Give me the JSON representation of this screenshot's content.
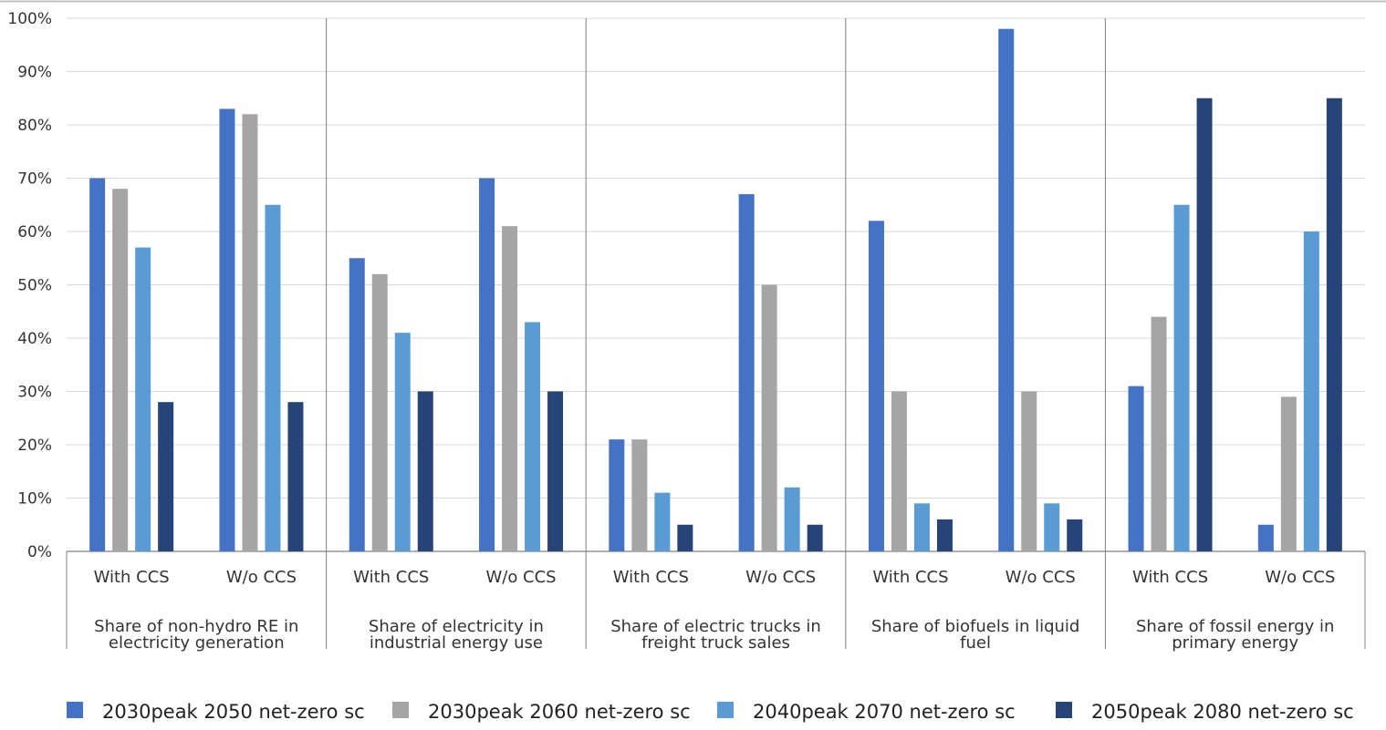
{
  "chart_data": {
    "type": "bar",
    "title": "",
    "xlabel": "",
    "ylabel": "",
    "ylim": [
      0,
      100
    ],
    "y_ticks": [
      0,
      10,
      20,
      30,
      40,
      50,
      60,
      70,
      80,
      90,
      100
    ],
    "y_tick_labels": [
      "0%",
      "10%",
      "20%",
      "30%",
      "40%",
      "50%",
      "60%",
      "70%",
      "80%",
      "90%",
      "100%"
    ],
    "grid": true,
    "legend_position": "bottom",
    "series": [
      {
        "name": "2030peak 2050 net-zero sc",
        "color": "#4472C4"
      },
      {
        "name": "2030peak 2060 net-zero sc",
        "color": "#A5A5A5"
      },
      {
        "name": "2040peak 2070 net-zero sc",
        "color": "#5B9BD5"
      },
      {
        "name": "2050peak 2080 net-zero sc",
        "color": "#264478"
      }
    ],
    "groups": [
      {
        "label_lines": [
          "Share of non-hydro RE in",
          "electricity generation"
        ],
        "categories": [
          {
            "label": "With CCS",
            "values": [
              70,
              68,
              57,
              28
            ]
          },
          {
            "label": "W/o CCS",
            "values": [
              83,
              82,
              65,
              28
            ]
          }
        ]
      },
      {
        "label_lines": [
          "Share of electricity in",
          "industrial energy use"
        ],
        "categories": [
          {
            "label": "With CCS",
            "values": [
              55,
              52,
              41,
              30
            ]
          },
          {
            "label": "W/o CCS",
            "values": [
              70,
              61,
              43,
              30
            ]
          }
        ]
      },
      {
        "label_lines": [
          "Share of electric trucks in",
          "freight truck sales"
        ],
        "categories": [
          {
            "label": "With CCS",
            "values": [
              21,
              21,
              11,
              5
            ]
          },
          {
            "label": "W/o CCS",
            "values": [
              67,
              50,
              12,
              5
            ]
          }
        ]
      },
      {
        "label_lines": [
          "Share of biofuels in liquid",
          "fuel"
        ],
        "categories": [
          {
            "label": "With CCS",
            "values": [
              62,
              30,
              9,
              6
            ]
          },
          {
            "label": "W/o CCS",
            "values": [
              98,
              30,
              9,
              6
            ]
          }
        ]
      },
      {
        "label_lines": [
          "Share of fossil energy in",
          "primary energy"
        ],
        "categories": [
          {
            "label": "With CCS",
            "values": [
              31,
              44,
              65,
              85
            ]
          },
          {
            "label": "W/o CCS",
            "values": [
              5,
              29,
              60,
              85
            ]
          }
        ]
      }
    ]
  }
}
